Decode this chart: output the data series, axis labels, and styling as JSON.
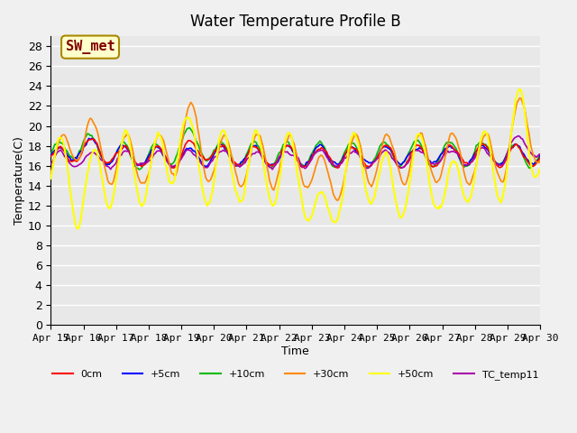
{
  "title": "Water Temperature Profile B",
  "xlabel": "Time",
  "ylabel": "Temperature(C)",
  "ylim": [
    0,
    29
  ],
  "yticks": [
    0,
    2,
    4,
    6,
    8,
    10,
    12,
    14,
    16,
    18,
    20,
    22,
    24,
    26,
    28
  ],
  "xtick_labels": [
    "Apr 15",
    "Apr 16",
    "Apr 17",
    "Apr 18",
    "Apr 19",
    "Apr 20",
    "Apr 21",
    "Apr 22",
    "Apr 23",
    "Apr 24",
    "Apr 25",
    "Apr 26",
    "Apr 27",
    "Apr 28",
    "Apr 29",
    "Apr 30"
  ],
  "annotation_text": "SW_met",
  "annotation_color": "#800000",
  "annotation_bg": "#ffffcc",
  "annotation_border": "#aa8800",
  "series": {
    "0cm": {
      "color": "#ff0000",
      "lw": 1.2
    },
    "+5cm": {
      "color": "#0000ff",
      "lw": 1.2
    },
    "+10cm": {
      "color": "#00bb00",
      "lw": 1.2
    },
    "+30cm": {
      "color": "#ff8800",
      "lw": 1.2
    },
    "+50cm": {
      "color": "#ffff00",
      "lw": 1.5
    },
    "TC_temp11": {
      "color": "#aa00aa",
      "lw": 1.2
    }
  },
  "bg_color": "#e8e8e8",
  "grid_color": "#ffffff",
  "font_family": "monospace"
}
